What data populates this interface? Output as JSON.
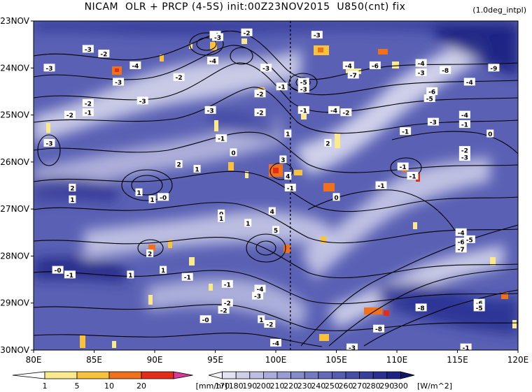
{
  "title": "NICAM  OLR + PRCP (4-5S) init:00Z23NOV2015  U850(cnt) fix",
  "note": "(1.0deg_intpl)",
  "chart_data": {
    "type": "heatmap",
    "description_fields": {
      "x_axis": "longitude",
      "y_axis": "date (time increasing downward)",
      "shading": "OLR",
      "contours": "U850",
      "overlay": "precipitation"
    },
    "x_ticks": [
      "80E",
      "85E",
      "90E",
      "95E",
      "100E",
      "105E",
      "110E",
      "115E",
      "120E"
    ],
    "x_values": [
      80,
      85,
      90,
      95,
      100,
      105,
      110,
      115,
      120
    ],
    "xlim": [
      80,
      120
    ],
    "y_ticks": [
      "23NOV",
      "24NOV",
      "25NOV",
      "26NOV",
      "27NOV",
      "28NOV",
      "29NOV",
      "30NOV"
    ],
    "ylim_days": [
      0,
      7
    ],
    "reference_line_lon": 101.2,
    "contour_labels": [
      {
        "lon": 95.0,
        "day": 0.3,
        "text": "-4"
      },
      {
        "lon": 97.6,
        "day": 0.25,
        "text": "-2"
      },
      {
        "lon": 95.2,
        "day": 0.35,
        "text": "-3"
      },
      {
        "lon": 84.5,
        "day": 0.6,
        "text": "-3"
      },
      {
        "lon": 85.8,
        "day": 0.7,
        "text": "-2"
      },
      {
        "lon": 81.3,
        "day": 1.0,
        "text": "-3"
      },
      {
        "lon": 88.4,
        "day": 0.95,
        "text": "-4"
      },
      {
        "lon": 87.0,
        "day": 1.3,
        "text": "-3"
      },
      {
        "lon": 92.0,
        "day": 1.2,
        "text": "-2"
      },
      {
        "lon": 94.8,
        "day": 0.85,
        "text": "-4"
      },
      {
        "lon": 99.2,
        "day": 1.0,
        "text": "-3"
      },
      {
        "lon": 103.4,
        "day": 0.3,
        "text": "-3"
      },
      {
        "lon": 106.0,
        "day": 0.95,
        "text": "-4"
      },
      {
        "lon": 108.2,
        "day": 0.95,
        "text": "-6"
      },
      {
        "lon": 112.0,
        "day": 0.9,
        "text": "-4"
      },
      {
        "lon": 112.0,
        "day": 1.1,
        "text": "-3"
      },
      {
        "lon": 114.0,
        "day": 1.05,
        "text": "-8"
      },
      {
        "lon": 118.0,
        "day": 1.0,
        "text": "-9"
      },
      {
        "lon": 106.4,
        "day": 1.15,
        "text": "-7"
      },
      {
        "lon": 102.3,
        "day": 1.3,
        "text": "-5"
      },
      {
        "lon": 102.3,
        "day": 1.45,
        "text": "-3"
      },
      {
        "lon": 100.5,
        "day": 1.4,
        "text": "-1"
      },
      {
        "lon": 98.7,
        "day": 1.55,
        "text": "-2"
      },
      {
        "lon": 84.5,
        "day": 1.75,
        "text": "-2"
      },
      {
        "lon": 83.0,
        "day": 2.0,
        "text": "-2"
      },
      {
        "lon": 84.5,
        "day": 1.95,
        "text": "-1"
      },
      {
        "lon": 89.0,
        "day": 1.7,
        "text": "-3"
      },
      {
        "lon": 94.6,
        "day": 1.9,
        "text": "-3"
      },
      {
        "lon": 98.7,
        "day": 1.95,
        "text": "-2"
      },
      {
        "lon": 102.3,
        "day": 1.9,
        "text": "-1"
      },
      {
        "lon": 104.8,
        "day": 1.9,
        "text": "-4"
      },
      {
        "lon": 105.8,
        "day": 1.95,
        "text": "-2"
      },
      {
        "lon": 112.9,
        "day": 1.5,
        "text": "-6"
      },
      {
        "lon": 112.7,
        "day": 1.65,
        "text": "-5"
      },
      {
        "lon": 116.0,
        "day": 1.3,
        "text": "-4"
      },
      {
        "lon": 115.6,
        "day": 2.0,
        "text": "-4"
      },
      {
        "lon": 113.0,
        "day": 2.15,
        "text": "-3"
      },
      {
        "lon": 110.7,
        "day": 2.35,
        "text": "-1"
      },
      {
        "lon": 115.6,
        "day": 2.2,
        "text": "-1"
      },
      {
        "lon": 117.7,
        "day": 2.4,
        "text": "0"
      },
      {
        "lon": 115.6,
        "day": 2.75,
        "text": "-2"
      },
      {
        "lon": 115.6,
        "day": 2.9,
        "text": "-3"
      },
      {
        "lon": 81.3,
        "day": 2.6,
        "text": "-3"
      },
      {
        "lon": 95.5,
        "day": 2.5,
        "text": "-1"
      },
      {
        "lon": 101.0,
        "day": 2.4,
        "text": "1"
      },
      {
        "lon": 104.3,
        "day": 2.6,
        "text": "2"
      },
      {
        "lon": 96.5,
        "day": 2.8,
        "text": "0"
      },
      {
        "lon": 92.0,
        "day": 3.05,
        "text": "2"
      },
      {
        "lon": 93.5,
        "day": 3.15,
        "text": "1"
      },
      {
        "lon": 100.6,
        "day": 2.95,
        "text": "3"
      },
      {
        "lon": 101.0,
        "day": 3.3,
        "text": "4"
      },
      {
        "lon": 101.2,
        "day": 3.55,
        "text": "-1"
      },
      {
        "lon": 110.5,
        "day": 3.1,
        "text": "-1"
      },
      {
        "lon": 111.3,
        "day": 3.3,
        "text": "-1"
      },
      {
        "lon": 108.7,
        "day": 3.5,
        "text": "-1"
      },
      {
        "lon": 105.0,
        "day": 3.75,
        "text": "0"
      },
      {
        "lon": 83.2,
        "day": 3.55,
        "text": "2"
      },
      {
        "lon": 83.2,
        "day": 3.8,
        "text": "1"
      },
      {
        "lon": 88.7,
        "day": 3.65,
        "text": "1"
      },
      {
        "lon": 89.8,
        "day": 3.8,
        "text": "1"
      },
      {
        "lon": 90.7,
        "day": 3.75,
        "text": "-0"
      },
      {
        "lon": 95.5,
        "day": 4.1,
        "text": "0"
      },
      {
        "lon": 95.5,
        "day": 4.2,
        "text": "1"
      },
      {
        "lon": 99.7,
        "day": 4.05,
        "text": "4"
      },
      {
        "lon": 97.7,
        "day": 4.3,
        "text": "1"
      },
      {
        "lon": 100.0,
        "day": 4.45,
        "text": "5"
      },
      {
        "lon": 115.3,
        "day": 4.5,
        "text": "-4"
      },
      {
        "lon": 115.3,
        "day": 4.7,
        "text": "-6"
      },
      {
        "lon": 116.0,
        "day": 4.65,
        "text": "-5"
      },
      {
        "lon": 115.3,
        "day": 4.85,
        "text": "-7"
      },
      {
        "lon": 89.6,
        "day": 4.95,
        "text": "2"
      },
      {
        "lon": 90.7,
        "day": 5.3,
        "text": "1"
      },
      {
        "lon": 82.0,
        "day": 5.3,
        "text": "-0"
      },
      {
        "lon": 83.0,
        "day": 5.4,
        "text": "-1"
      },
      {
        "lon": 88.0,
        "day": 5.4,
        "text": "1"
      },
      {
        "lon": 92.7,
        "day": 5.45,
        "text": "-1"
      },
      {
        "lon": 96.0,
        "day": 5.6,
        "text": "-1"
      },
      {
        "lon": 98.5,
        "day": 5.85,
        "text": "-3"
      },
      {
        "lon": 98.7,
        "day": 5.7,
        "text": "-4"
      },
      {
        "lon": 98.8,
        "day": 6.35,
        "text": "1"
      },
      {
        "lon": 95.7,
        "day": 6.15,
        "text": "-2"
      },
      {
        "lon": 96.0,
        "day": 6.0,
        "text": "-2"
      },
      {
        "lon": 94.2,
        "day": 6.35,
        "text": "-0"
      },
      {
        "lon": 99.5,
        "day": 6.45,
        "text": "-2"
      },
      {
        "lon": 100.0,
        "day": 6.85,
        "text": "-4"
      },
      {
        "lon": 108.5,
        "day": 6.55,
        "text": "-8"
      },
      {
        "lon": 112.0,
        "day": 6.1,
        "text": "-8"
      },
      {
        "lon": 116.8,
        "day": 6.0,
        "text": "-6"
      },
      {
        "lon": 116.8,
        "day": 6.1,
        "text": "-5"
      },
      {
        "lon": 115.7,
        "day": 6.95,
        "text": "-1"
      },
      {
        "lon": 106.3,
        "day": 6.95,
        "text": "-3"
      },
      {
        "lon": 106.0,
        "day": 7.15,
        "text": "-6"
      },
      {
        "lon": 104.3,
        "day": 7.3,
        "text": "-8"
      },
      {
        "lon": 104.0,
        "day": 7.45,
        "text": "-4"
      },
      {
        "lon": 119.3,
        "day": 7.3,
        "text": "0"
      }
    ],
    "precip_colorbar": {
      "levels": [
        "1",
        "5",
        "10",
        "20"
      ],
      "colors": [
        "#fbe98d",
        "#f8c23b",
        "#f0711a",
        "#e52b1a",
        "#d83a9a"
      ],
      "unit": "[mm/hr]"
    },
    "olr_colorbar": {
      "levels": [
        "170",
        "180",
        "190",
        "200",
        "210",
        "220",
        "230",
        "240",
        "250",
        "260",
        "270",
        "280",
        "290",
        "300"
      ],
      "colors": [
        "#f2f2f7",
        "#e2e2f0",
        "#cfd0e8",
        "#bdbfe2",
        "#aaadda",
        "#979cd2",
        "#868cca",
        "#757bc1",
        "#656bb9",
        "#565cb1",
        "#474ea8",
        "#393f9e",
        "#2b3193",
        "#1d2386",
        "#121868"
      ],
      "unit": "[W/m^2]"
    }
  }
}
